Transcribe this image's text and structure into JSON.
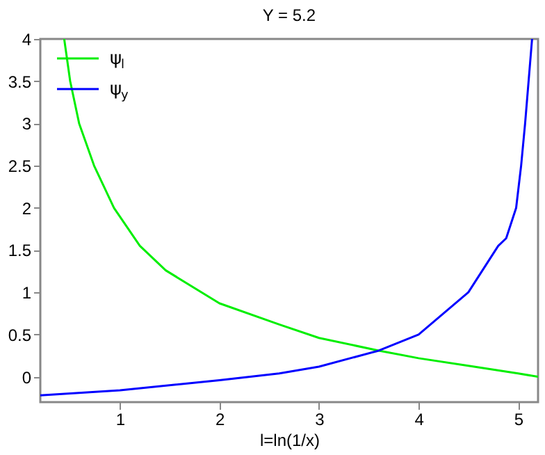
{
  "chart_data": {
    "type": "line",
    "title": "Y = 5.2",
    "xlabel": "l=ln(1/x)",
    "xlim": [
      0.2,
      5.2
    ],
    "ylim": [
      -0.3,
      4
    ],
    "xticks": [
      1,
      2,
      3,
      4,
      5
    ],
    "yticks": [
      0,
      0.5,
      1,
      1.5,
      2,
      2.5,
      3,
      3.5,
      4
    ],
    "grid": false,
    "legend": "top left",
    "line_style": "solid",
    "marker": "none",
    "series": [
      {
        "name": "ψ$_{l}$",
        "color": "#00ee00",
        "x": [
          0.44,
          0.5,
          0.59,
          0.74,
          0.94,
          1.2,
          1.46,
          2,
          2.6,
          3,
          3.6,
          4,
          4.5,
          5,
          5.2
        ],
        "values": [
          4,
          3.5,
          3,
          2.5,
          2,
          1.55,
          1.26,
          0.87,
          0.62,
          0.46,
          0.31,
          0.22,
          0.13,
          0.04,
          0.0
        ]
      },
      {
        "name": "ψ$_{y}$",
        "color": "#0000ff",
        "x": [
          0.2,
          1,
          2,
          2.6,
          3,
          3.6,
          4,
          4.5,
          4.8,
          4.88,
          4.98,
          5.03,
          5.07,
          5.14
        ],
        "values": [
          -0.22,
          -0.16,
          -0.04,
          0.04,
          0.12,
          0.31,
          0.5,
          1.0,
          1.55,
          1.64,
          2,
          2.5,
          3,
          4
        ]
      }
    ]
  }
}
